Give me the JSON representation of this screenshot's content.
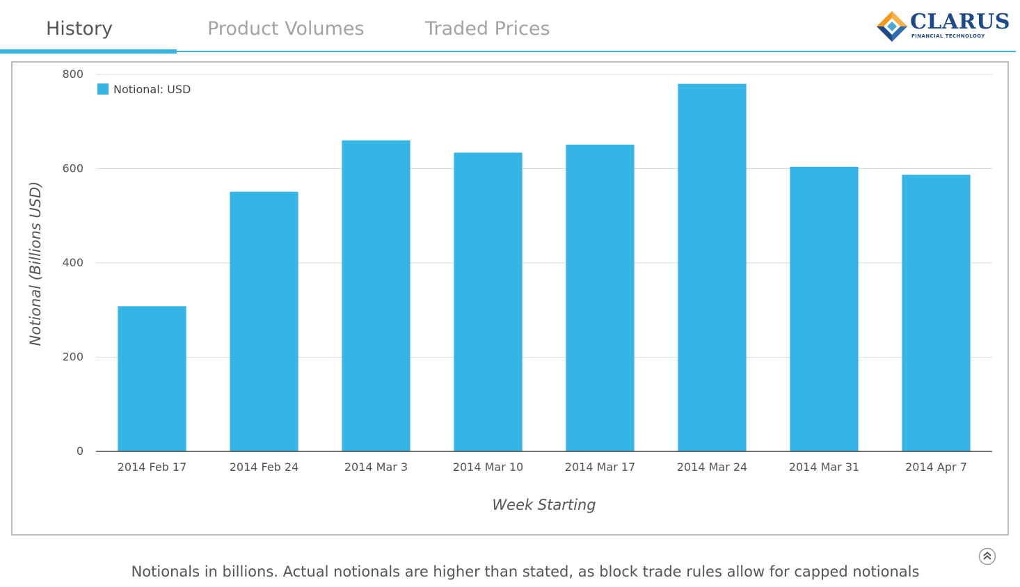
{
  "tabs": [
    {
      "label": "History",
      "active": true
    },
    {
      "label": "Product Volumes",
      "active": false
    },
    {
      "label": "Traded Prices",
      "active": false
    }
  ],
  "logo": {
    "name": "CLARUS",
    "tagline": "FINANCIAL TECHNOLOGY"
  },
  "chart_data": {
    "type": "bar",
    "categories": [
      "2014 Feb 17",
      "2014 Feb 24",
      "2014 Mar 3",
      "2014 Mar 10",
      "2014 Mar 17",
      "2014 Mar 24",
      "2014 Mar 31",
      "2014 Apr 7"
    ],
    "series": [
      {
        "name": "Notional: USD",
        "values": [
          308,
          551,
          660,
          634,
          651,
          780,
          604,
          587
        ],
        "color": "#34b5e5"
      }
    ],
    "xlabel": "Week Starting",
    "ylabel": "Notional (Billions USD)",
    "ylim": [
      0,
      800
    ],
    "yticks": [
      0,
      200,
      400,
      600,
      800
    ],
    "grid": true,
    "legend_position": "top-left"
  },
  "footnote": "Notionals in billions. Actual notionals are higher than stated, as block trade rules allow for capped notionals",
  "icons": {
    "scroll_top": "double-chevron-up-icon"
  },
  "colors": {
    "accent": "#34b5e5",
    "bar": "#34b5e5",
    "logo": "#1c4a8a"
  }
}
